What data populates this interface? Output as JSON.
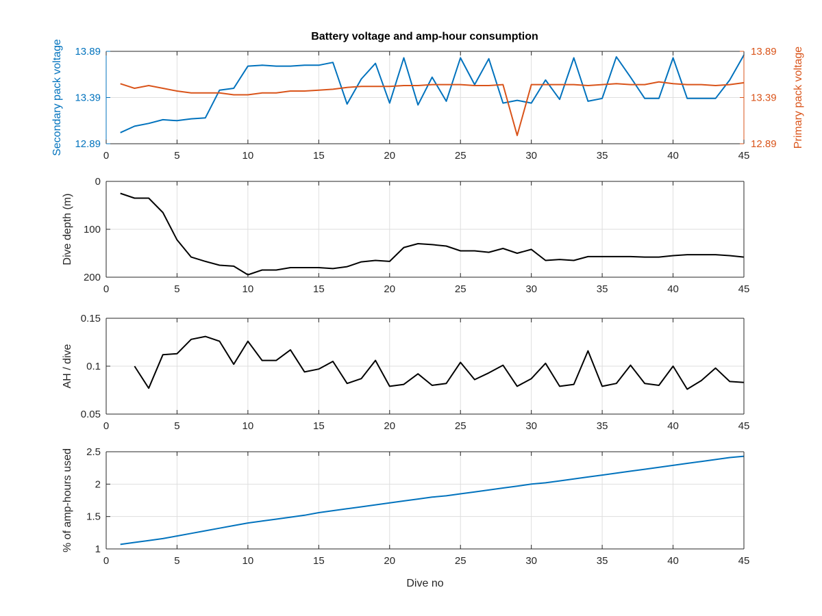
{
  "figure_title": "Battery voltage and amp-hour consumption",
  "colors": {
    "secondary": "#0072BD",
    "primary": "#D95319",
    "black": "#000000",
    "grid": "#dedede",
    "axis": "#262626"
  },
  "chart_data": [
    {
      "type": "line",
      "title": "Battery voltage and amp-hour consumption",
      "xlabel": "",
      "xlim": [
        0,
        45
      ],
      "xticks": [
        0,
        5,
        10,
        15,
        20,
        25,
        30,
        35,
        40,
        45
      ],
      "grid": true,
      "y_left": {
        "label": "Secondary pack voltage",
        "lim": [
          12.89,
          13.89
        ],
        "ticks": [
          "12.89",
          "13.39",
          "13.89"
        ],
        "color": "#0072BD"
      },
      "y_right": {
        "label": "Primary pack voltage",
        "lim": [
          12.89,
          13.89
        ],
        "ticks": [
          "12.89",
          "13.39",
          "13.89"
        ],
        "color": "#D95319"
      },
      "series": [
        {
          "axis": "left",
          "x": [
            1,
            2,
            3,
            4,
            5,
            6,
            7,
            8,
            9,
            10,
            11,
            12,
            13,
            14,
            15,
            16,
            17,
            18,
            19,
            20,
            21,
            22,
            23,
            24,
            25,
            26,
            27,
            28,
            29,
            30,
            31,
            32,
            33,
            34,
            35,
            36,
            37,
            38,
            39,
            40,
            41,
            42,
            43,
            44,
            45
          ],
          "values": [
            13.01,
            13.08,
            13.11,
            13.15,
            13.14,
            13.16,
            13.17,
            13.47,
            13.49,
            13.73,
            13.74,
            13.73,
            13.73,
            13.74,
            13.74,
            13.77,
            13.32,
            13.59,
            13.76,
            13.33,
            13.82,
            13.31,
            13.61,
            13.35,
            13.82,
            13.53,
            13.81,
            13.33,
            13.36,
            13.33,
            13.58,
            13.37,
            13.82,
            13.35,
            13.38,
            13.83,
            13.61,
            13.38,
            13.38,
            13.82,
            13.38,
            13.38,
            13.38,
            13.58,
            13.85
          ]
        },
        {
          "axis": "right",
          "x": [
            1,
            2,
            3,
            4,
            5,
            6,
            7,
            8,
            9,
            10,
            11,
            12,
            13,
            14,
            15,
            16,
            17,
            18,
            19,
            20,
            21,
            22,
            23,
            24,
            25,
            26,
            27,
            28,
            29,
            30,
            31,
            32,
            33,
            34,
            35,
            36,
            37,
            38,
            39,
            40,
            41,
            42,
            43,
            44,
            45
          ],
          "values": [
            13.54,
            13.49,
            13.52,
            13.49,
            13.46,
            13.44,
            13.44,
            13.44,
            13.42,
            13.42,
            13.44,
            13.44,
            13.46,
            13.46,
            13.47,
            13.48,
            13.5,
            13.51,
            13.51,
            13.51,
            13.52,
            13.52,
            13.53,
            13.53,
            13.53,
            13.52,
            13.52,
            13.53,
            12.98,
            13.53,
            13.53,
            13.53,
            13.53,
            13.52,
            13.53,
            13.54,
            13.53,
            13.53,
            13.56,
            13.54,
            13.53,
            13.53,
            13.52,
            13.53,
            13.55
          ]
        }
      ]
    },
    {
      "type": "line",
      "xlabel": "",
      "ylabel": "Dive depth (m)",
      "xlim": [
        0,
        45
      ],
      "ylim": [
        0,
        200
      ],
      "y_reversed": true,
      "xticks": [
        0,
        5,
        10,
        15,
        20,
        25,
        30,
        35,
        40,
        45
      ],
      "yticks": [
        0,
        100,
        200
      ],
      "grid": true,
      "series": [
        {
          "x": [
            1,
            2,
            3,
            4,
            5,
            6,
            7,
            8,
            9,
            10,
            11,
            12,
            13,
            14,
            15,
            16,
            17,
            18,
            19,
            20,
            21,
            22,
            23,
            24,
            25,
            26,
            27,
            28,
            29,
            30,
            31,
            32,
            33,
            34,
            35,
            36,
            37,
            38,
            39,
            40,
            41,
            42,
            43,
            44,
            45
          ],
          "values": [
            25,
            35,
            35,
            65,
            122,
            158,
            167,
            175,
            177,
            195,
            185,
            185,
            180,
            180,
            180,
            182,
            178,
            168,
            165,
            167,
            138,
            130,
            132,
            135,
            145,
            145,
            148,
            140,
            150,
            142,
            165,
            163,
            165,
            157,
            157,
            157,
            157,
            158,
            158,
            155,
            153,
            153,
            153,
            155,
            158
          ]
        }
      ]
    },
    {
      "type": "line",
      "xlabel": "",
      "ylabel": "AH / dive",
      "xlim": [
        0,
        45
      ],
      "ylim": [
        0.05,
        0.15
      ],
      "xticks": [
        0,
        5,
        10,
        15,
        20,
        25,
        30,
        35,
        40,
        45
      ],
      "yticks": [
        "0.05",
        "0.1",
        "0.15"
      ],
      "grid": true,
      "series": [
        {
          "x": [
            2,
            3,
            4,
            5,
            6,
            7,
            8,
            9,
            10,
            11,
            12,
            13,
            14,
            15,
            16,
            17,
            18,
            19,
            20,
            21,
            22,
            23,
            24,
            25,
            26,
            27,
            28,
            29,
            30,
            31,
            32,
            33,
            34,
            35,
            36,
            37,
            38,
            39,
            40,
            41,
            42,
            43,
            44,
            45
          ],
          "values": [
            0.1,
            0.077,
            0.112,
            0.113,
            0.128,
            0.131,
            0.126,
            0.102,
            0.126,
            0.106,
            0.106,
            0.117,
            0.094,
            0.097,
            0.105,
            0.082,
            0.087,
            0.106,
            0.079,
            0.081,
            0.092,
            0.08,
            0.082,
            0.104,
            0.086,
            0.093,
            0.101,
            0.079,
            0.087,
            0.103,
            0.079,
            0.081,
            0.116,
            0.079,
            0.082,
            0.101,
            0.082,
            0.08,
            0.1,
            0.076,
            0.085,
            0.098,
            0.084,
            0.083
          ]
        }
      ]
    },
    {
      "type": "line",
      "xlabel": "Dive no",
      "ylabel": "% of amp-hours used",
      "xlim": [
        0,
        45
      ],
      "ylim": [
        1,
        2.5
      ],
      "xticks": [
        0,
        5,
        10,
        15,
        20,
        25,
        30,
        35,
        40,
        45
      ],
      "yticks": [
        "1",
        "1.5",
        "2",
        "2.5"
      ],
      "grid": true,
      "series": [
        {
          "x": [
            1,
            2,
            3,
            4,
            5,
            6,
            7,
            8,
            9,
            10,
            11,
            12,
            13,
            14,
            15,
            16,
            17,
            18,
            19,
            20,
            21,
            22,
            23,
            24,
            25,
            26,
            27,
            28,
            29,
            30,
            31,
            32,
            33,
            34,
            35,
            36,
            37,
            38,
            39,
            40,
            41,
            42,
            43,
            44,
            45
          ],
          "values": [
            1.07,
            1.1,
            1.13,
            1.16,
            1.2,
            1.24,
            1.28,
            1.32,
            1.36,
            1.4,
            1.43,
            1.46,
            1.49,
            1.52,
            1.56,
            1.59,
            1.62,
            1.65,
            1.68,
            1.71,
            1.74,
            1.77,
            1.8,
            1.82,
            1.85,
            1.88,
            1.91,
            1.94,
            1.97,
            2.0,
            2.02,
            2.05,
            2.08,
            2.11,
            2.14,
            2.17,
            2.2,
            2.23,
            2.26,
            2.29,
            2.32,
            2.35,
            2.38,
            2.41,
            2.43
          ]
        }
      ]
    }
  ]
}
